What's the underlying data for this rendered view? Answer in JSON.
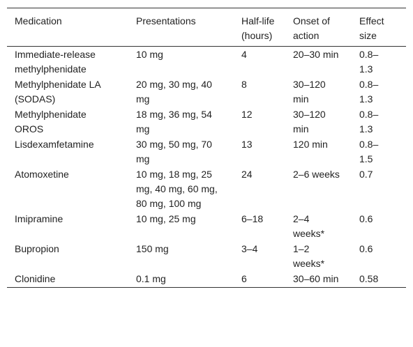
{
  "table": {
    "header": [
      "Medication",
      "Presentations",
      "Half-life (hours)",
      "Onset of action",
      "Effect size"
    ],
    "rows": [
      [
        "Immediate-release methylphenidate",
        "10 mg",
        "4",
        "20–30 min",
        "0.8–1.3"
      ],
      [
        "Methylphenidate LA (SODAS)",
        "20 mg, 30 mg, 40 mg",
        "8",
        "30–120 min",
        "0.8–1.3"
      ],
      [
        "Methylphenidate OROS",
        "18 mg, 36 mg, 54 mg",
        "12",
        "30–120 min",
        "0.8–1.3"
      ],
      [
        "Lisdexamfetamine",
        "30 mg, 50 mg, 70 mg",
        "13",
        "120 min",
        "0.8–1.5"
      ],
      [
        "Atomoxetine",
        "10 mg, 18 mg, 25 mg, 40 mg, 60 mg, 80 mg, 100 mg",
        "24",
        "2–6 weeks",
        "0.7"
      ],
      [
        "Imipramine",
        "10 mg, 25 mg",
        "6–18",
        "2–4 weeks*",
        "0.6"
      ],
      [
        "Bupropion",
        "150 mg",
        "3–4",
        "1–2 weeks*",
        "0.6"
      ],
      [
        "Clonidine",
        "0.1 mg",
        "6",
        "30–60 min",
        "0.58"
      ]
    ]
  }
}
